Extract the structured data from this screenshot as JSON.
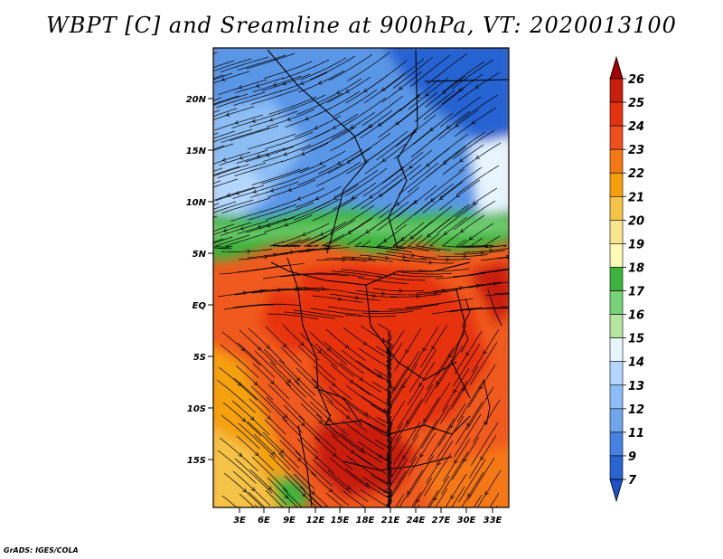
{
  "title": "WBPT [C] and Sreamline at 900hPa, VT: 2020013100",
  "footer": "GrADS: IGES/COLA",
  "map": {
    "lat_labels": [
      "20N",
      "15N",
      "10N",
      "5N",
      "EQ",
      "5S",
      "10S",
      "15S"
    ],
    "lon_labels": [
      "3E",
      "6E",
      "9E",
      "12E",
      "15E",
      "18E",
      "21E",
      "24E",
      "27E",
      "30E",
      "33E"
    ]
  },
  "colorbar": {
    "levels": [
      "26",
      "25",
      "24",
      "23",
      "22",
      "21",
      "20",
      "19",
      "18",
      "17",
      "16",
      "15",
      "14",
      "13",
      "12",
      "11",
      "9",
      "7"
    ],
    "colors": [
      "#a50000",
      "#c81e0a",
      "#e6320f",
      "#f0501e",
      "#f57814",
      "#f5a00a",
      "#f5c346",
      "#fae68c",
      "#fffab4",
      "#3cb43c",
      "#78d278",
      "#b4e6a0",
      "#e6f5ff",
      "#b4d7ff",
      "#8cbef5",
      "#6ea5eb",
      "#4682e1",
      "#2864d2",
      "#1e50c8"
    ]
  },
  "icons": [
    "arrow-icon"
  ]
}
